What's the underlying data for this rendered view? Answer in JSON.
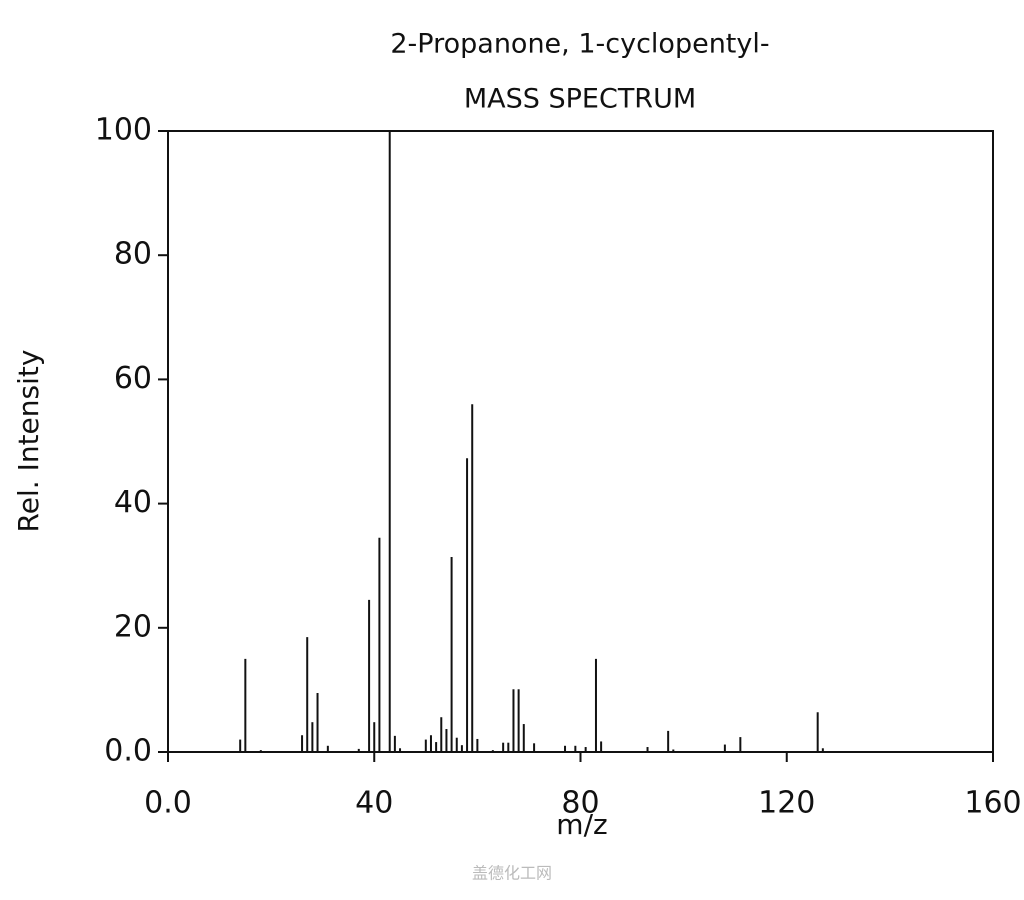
{
  "chart_data": {
    "type": "stem",
    "title": "2-Propanone, 1-cyclopentyl-",
    "subtitle": "MASS SPECTRUM",
    "x_label": "m/z",
    "y_label": "Rel. Intensity",
    "watermark": "盖德化工网",
    "color": "#111111",
    "x": [
      14,
      15,
      18,
      26,
      27,
      28,
      29,
      31,
      37,
      39,
      40,
      41,
      43,
      44,
      45,
      50,
      51,
      52,
      53,
      54,
      55,
      56,
      57,
      58,
      59,
      60,
      63,
      65,
      66,
      67,
      68,
      69,
      71,
      77,
      79,
      81,
      83,
      84,
      93,
      97,
      98,
      108,
      111,
      126,
      127
    ],
    "values": [
      2,
      15,
      0.3,
      2.7,
      18.5,
      4.8,
      9.5,
      1,
      0.5,
      24.5,
      4.8,
      34.5,
      100,
      2.6,
      0.6,
      2,
      2.7,
      1.6,
      5.6,
      3.7,
      31.4,
      2.3,
      1.1,
      47.3,
      56,
      2.1,
      0.3,
      1.5,
      1.5,
      10.1,
      10.1,
      4.5,
      1.4,
      1,
      1,
      0.8,
      15,
      1.7,
      0.8,
      3.4,
      0.4,
      1.2,
      2.4,
      6.4,
      0.6
    ],
    "xlim": [
      0,
      160
    ],
    "xticks": [
      {
        "value": 0,
        "label": "0.0"
      },
      40,
      80,
      120,
      160
    ],
    "ylim": [
      0,
      100
    ],
    "yticks": [
      {
        "value": 0,
        "label": "0.0"
      },
      20,
      40,
      60,
      80,
      100
    ]
  }
}
